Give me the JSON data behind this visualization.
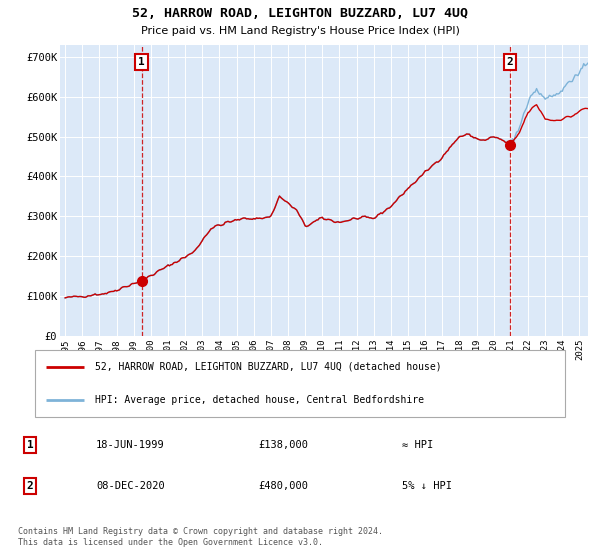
{
  "title": "52, HARROW ROAD, LEIGHTON BUZZARD, LU7 4UQ",
  "subtitle": "Price paid vs. HM Land Registry's House Price Index (HPI)",
  "hpi_label": "HPI: Average price, detached house, Central Bedfordshire",
  "property_label": "52, HARROW ROAD, LEIGHTON BUZZARD, LU7 4UQ (detached house)",
  "annotation1_date": "18-JUN-1999",
  "annotation1_price": "£138,000",
  "annotation1_hpi": "≈ HPI",
  "annotation2_date": "08-DEC-2020",
  "annotation2_price": "£480,000",
  "annotation2_hpi": "5% ↓ HPI",
  "point1_year": 1999.46,
  "point1_value": 138000,
  "point2_year": 2020.93,
  "point2_value": 480000,
  "vline1_year": 1999.46,
  "vline2_year": 2020.93,
  "ylim": [
    0,
    730000
  ],
  "xlim_start": 1994.7,
  "xlim_end": 2025.5,
  "background_color": "#dce9f8",
  "plot_bg_color": "#dce9f8",
  "hpi_line_color": "#7eb3d8",
  "sale_line_color": "#cc0000",
  "vline_color": "#cc0000",
  "point_color": "#cc0000",
  "footer": "Contains HM Land Registry data © Crown copyright and database right 2024.\nThis data is licensed under the Open Government Licence v3.0.",
  "ytick_labels": [
    "£0",
    "£100K",
    "£200K",
    "£300K",
    "£400K",
    "£500K",
    "£600K",
    "£700K"
  ],
  "ytick_values": [
    0,
    100000,
    200000,
    300000,
    400000,
    500000,
    600000,
    700000
  ],
  "xtick_years": [
    1995,
    1996,
    1997,
    1998,
    1999,
    2000,
    2001,
    2002,
    2003,
    2004,
    2005,
    2006,
    2007,
    2008,
    2009,
    2010,
    2011,
    2012,
    2013,
    2014,
    2015,
    2016,
    2017,
    2018,
    2019,
    2020,
    2021,
    2022,
    2023,
    2024,
    2025
  ]
}
